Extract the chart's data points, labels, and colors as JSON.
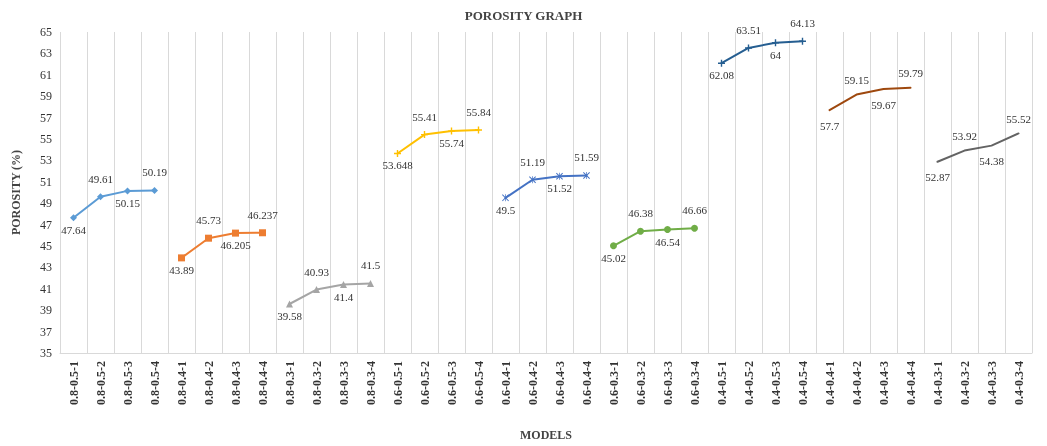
{
  "chart_data": {
    "type": "line",
    "title": "POROSITY GRAPH",
    "xlabel": "MODELS",
    "ylabel": "POROSITY (%)",
    "categories": [
      "0.8-0.5-1",
      "0.8-0.5-2",
      "0.8-0.5-3",
      "0.8-0.5-4",
      "0.8-0.4-1",
      "0.8-0.4-2",
      "0.8-0.4-3",
      "0.8-0.4-4",
      "0.8-0.3-1",
      "0.8-0.3-2",
      "0.8-0.3-3",
      "0.8-0.3-4",
      "0.6-0.5-1",
      "0.6-0.5-2",
      "0.6-0.5-3",
      "0.6-0.5-4",
      "0.6-0.4-1",
      "0.6-0.4-2",
      "0.6-0.4-3",
      "0.6-0.4-4",
      "0.6-0.3-1",
      "0.6-0.3-2",
      "0.6-0.3-3",
      "0.6-0.3-4",
      "0.4-0.5-1",
      "0.4-0.5-2",
      "0.4-0.5-3",
      "0.4-0.5-4",
      "0.4-0.4-1",
      "0.4-0.4-2",
      "0.4-0.4-3",
      "0.4-0.4-4",
      "0.4-0.3-1",
      "0.4-0.3-2",
      "0.4-0.3-3",
      "0.4-0.3-4"
    ],
    "series": [
      {
        "color": "#5b9bd5",
        "marker": "diamond",
        "values": [
          47.64,
          49.61,
          50.15,
          50.19,
          null,
          null,
          null,
          null,
          null,
          null,
          null,
          null,
          null,
          null,
          null,
          null,
          null,
          null,
          null,
          null,
          null,
          null,
          null,
          null,
          null,
          null,
          null,
          null,
          null,
          null,
          null,
          null,
          null,
          null,
          null,
          null
        ]
      },
      {
        "color": "#ed7d31",
        "marker": "square",
        "values": [
          null,
          null,
          null,
          null,
          43.89,
          45.73,
          46.205,
          46.237,
          null,
          null,
          null,
          null,
          null,
          null,
          null,
          null,
          null,
          null,
          null,
          null,
          null,
          null,
          null,
          null,
          null,
          null,
          null,
          null,
          null,
          null,
          null,
          null,
          null,
          null,
          null,
          null
        ]
      },
      {
        "color": "#a5a5a5",
        "marker": "triangle",
        "values": [
          null,
          null,
          null,
          null,
          null,
          null,
          null,
          null,
          39.58,
          40.93,
          41.4,
          41.5,
          null,
          null,
          null,
          null,
          null,
          null,
          null,
          null,
          null,
          null,
          null,
          null,
          null,
          null,
          null,
          null,
          null,
          null,
          null,
          null,
          null,
          null,
          null,
          null
        ]
      },
      {
        "color": "#ffc000",
        "marker": "cross",
        "values": [
          null,
          null,
          null,
          null,
          null,
          null,
          null,
          null,
          null,
          null,
          null,
          null,
          53.648,
          55.41,
          55.74,
          55.84,
          null,
          null,
          null,
          null,
          null,
          null,
          null,
          null,
          null,
          null,
          null,
          null,
          null,
          null,
          null,
          null,
          null,
          null,
          null,
          null
        ]
      },
      {
        "color": "#4472c4",
        "marker": "star",
        "values": [
          null,
          null,
          null,
          null,
          null,
          null,
          null,
          null,
          null,
          null,
          null,
          null,
          null,
          null,
          null,
          null,
          49.5,
          51.19,
          51.52,
          51.59,
          null,
          null,
          null,
          null,
          null,
          null,
          null,
          null,
          null,
          null,
          null,
          null,
          null,
          null,
          null,
          null
        ]
      },
      {
        "color": "#70ad47",
        "marker": "circle",
        "values": [
          null,
          null,
          null,
          null,
          null,
          null,
          null,
          null,
          null,
          null,
          null,
          null,
          null,
          null,
          null,
          null,
          null,
          null,
          null,
          null,
          45.02,
          46.38,
          46.54,
          46.66,
          null,
          null,
          null,
          null,
          null,
          null,
          null,
          null,
          null,
          null,
          null,
          null
        ]
      },
      {
        "color": "#255e91",
        "marker": "cross",
        "values": [
          null,
          null,
          null,
          null,
          null,
          null,
          null,
          null,
          null,
          null,
          null,
          null,
          null,
          null,
          null,
          null,
          null,
          null,
          null,
          null,
          null,
          null,
          null,
          null,
          62.08,
          63.51,
          64,
          64.13,
          null,
          null,
          null,
          null,
          null,
          null,
          null,
          null
        ]
      },
      {
        "color": "#9e480e",
        "marker": "none",
        "values": [
          null,
          null,
          null,
          null,
          null,
          null,
          null,
          null,
          null,
          null,
          null,
          null,
          null,
          null,
          null,
          null,
          null,
          null,
          null,
          null,
          null,
          null,
          null,
          null,
          null,
          null,
          null,
          null,
          57.7,
          59.15,
          59.67,
          59.79,
          null,
          null,
          null,
          null
        ]
      },
      {
        "color": "#636363",
        "marker": "none",
        "values": [
          null,
          null,
          null,
          null,
          null,
          null,
          null,
          null,
          null,
          null,
          null,
          null,
          null,
          null,
          null,
          null,
          null,
          null,
          null,
          null,
          null,
          null,
          null,
          null,
          null,
          null,
          null,
          null,
          null,
          null,
          null,
          null,
          52.87,
          53.92,
          54.38,
          55.52
        ]
      }
    ],
    "ylim": [
      35,
      65
    ],
    "yticks": [
      35,
      37,
      39,
      41,
      43,
      45,
      47,
      49,
      51,
      53,
      55,
      57,
      59,
      61,
      63,
      65
    ],
    "grid": "x",
    "data_labels": true,
    "line_style": "solid"
  }
}
